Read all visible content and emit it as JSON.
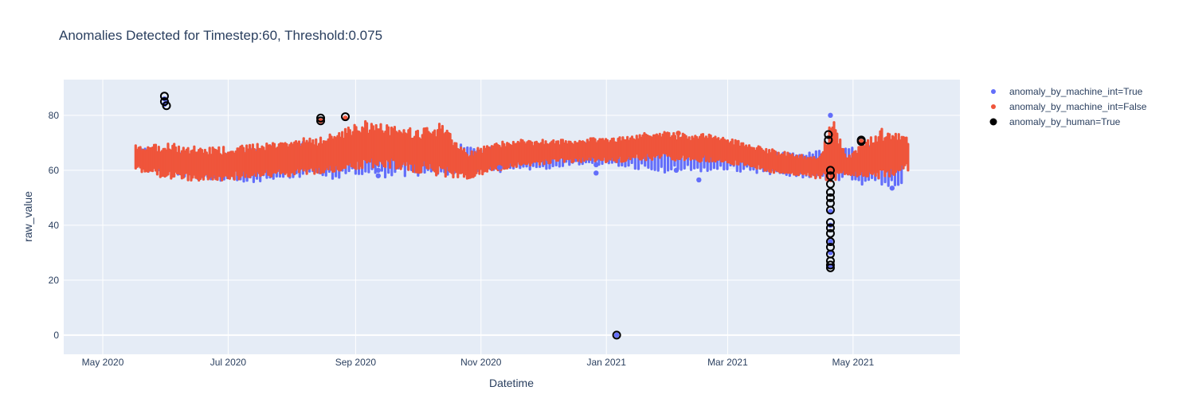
{
  "chart_data": {
    "type": "scatter",
    "title": "Anomalies Detected for Timestep:60, Threshold:0.075",
    "xlabel": "Datetime",
    "ylabel": "raw_value",
    "xlim": [
      "2020-04-12",
      "2021-06-22"
    ],
    "ylim": [
      -7,
      93
    ],
    "x_ticks": [
      {
        "date": "2020-05-01",
        "label": "May 2020"
      },
      {
        "date": "2020-07-01",
        "label": "Jul 2020"
      },
      {
        "date": "2020-09-01",
        "label": "Sep 2020"
      },
      {
        "date": "2020-11-01",
        "label": "Nov 2020"
      },
      {
        "date": "2021-01-01",
        "label": "Jan 2021"
      },
      {
        "date": "2021-03-01",
        "label": "Mar 2021"
      },
      {
        "date": "2021-05-01",
        "label": "May 2021"
      }
    ],
    "y_ticks": [
      0,
      20,
      40,
      60,
      80
    ],
    "grid": true,
    "legend_position": "top-right",
    "background_color": "#e5ecf6",
    "series": [
      {
        "name": "anomaly_by_machine_int=True",
        "color": "#636efa",
        "marker": "circle",
        "band": [
          {
            "x": "2020-05-20",
            "low": 60,
            "high": 68
          },
          {
            "x": "2020-06-10",
            "low": 57,
            "high": 66
          },
          {
            "x": "2020-07-01",
            "low": 55,
            "high": 67
          },
          {
            "x": "2020-08-01",
            "low": 57,
            "high": 70
          },
          {
            "x": "2020-09-01",
            "low": 57,
            "high": 72
          },
          {
            "x": "2020-10-01",
            "low": 58,
            "high": 72
          },
          {
            "x": "2020-11-01",
            "low": 59,
            "high": 68
          },
          {
            "x": "2021-01-01",
            "low": 62,
            "high": 70
          },
          {
            "x": "2021-02-01",
            "low": 59,
            "high": 70
          },
          {
            "x": "2021-03-01",
            "low": 60,
            "high": 68
          },
          {
            "x": "2021-04-01",
            "low": 58,
            "high": 66
          },
          {
            "x": "2021-05-26",
            "low": 53,
            "high": 70
          }
        ],
        "points": [
          {
            "x": "2020-05-31",
            "y": 86
          },
          {
            "x": "2020-05-31",
            "y": 84
          },
          {
            "x": "2020-06-01",
            "y": 85
          },
          {
            "x": "2020-09-12",
            "y": 60
          },
          {
            "x": "2020-09-12",
            "y": 58
          },
          {
            "x": "2020-11-10",
            "y": 61
          },
          {
            "x": "2020-12-27",
            "y": 62
          },
          {
            "x": "2020-12-27",
            "y": 59
          },
          {
            "x": "2021-02-04",
            "y": 60
          },
          {
            "x": "2021-02-15",
            "y": 56.5
          },
          {
            "x": "2021-04-20",
            "y": 80
          },
          {
            "x": "2021-04-20",
            "y": 45
          },
          {
            "x": "2021-04-20",
            "y": 40
          },
          {
            "x": "2021-04-20",
            "y": 34
          },
          {
            "x": "2021-04-20",
            "y": 30
          },
          {
            "x": "2021-04-20",
            "y": 25
          },
          {
            "x": "2021-05-20",
            "y": 53.5
          },
          {
            "x": "2021-01-06",
            "y": 0
          }
        ]
      },
      {
        "name": "anomaly_by_machine_int=False",
        "color": "#ef553b",
        "marker": "circle",
        "band": [
          {
            "x": "2020-05-17",
            "low": 60,
            "high": 69
          },
          {
            "x": "2020-06-01",
            "low": 57,
            "high": 70
          },
          {
            "x": "2020-06-20",
            "low": 56,
            "high": 68
          },
          {
            "x": "2020-07-10",
            "low": 57,
            "high": 69
          },
          {
            "x": "2020-08-01",
            "low": 58,
            "high": 71
          },
          {
            "x": "2020-08-20",
            "low": 59,
            "high": 73
          },
          {
            "x": "2020-09-05",
            "low": 61,
            "high": 78
          },
          {
            "x": "2020-09-25",
            "low": 60,
            "high": 75
          },
          {
            "x": "2020-10-12",
            "low": 58,
            "high": 77
          },
          {
            "x": "2020-10-25",
            "low": 57,
            "high": 67
          },
          {
            "x": "2020-11-15",
            "low": 61,
            "high": 71
          },
          {
            "x": "2020-12-10",
            "low": 63,
            "high": 71
          },
          {
            "x": "2021-01-05",
            "low": 63,
            "high": 72
          },
          {
            "x": "2021-01-25",
            "low": 64,
            "high": 74
          },
          {
            "x": "2021-02-20",
            "low": 63,
            "high": 73
          },
          {
            "x": "2021-03-10",
            "low": 61,
            "high": 70
          },
          {
            "x": "2021-04-01",
            "low": 58,
            "high": 66
          },
          {
            "x": "2021-04-15",
            "low": 57,
            "high": 65
          },
          {
            "x": "2021-04-21",
            "low": 56,
            "high": 79
          },
          {
            "x": "2021-04-28",
            "low": 58,
            "high": 65
          },
          {
            "x": "2021-05-15",
            "low": 57,
            "high": 75
          },
          {
            "x": "2021-05-28",
            "low": 60,
            "high": 72
          }
        ],
        "points": [
          {
            "x": "2020-08-15",
            "y": 78
          },
          {
            "x": "2020-08-27",
            "y": 79
          },
          {
            "x": "2021-02-05",
            "y": 73.5
          },
          {
            "x": "2021-05-05",
            "y": 70.5
          }
        ]
      },
      {
        "name": "anomaly_by_human=True",
        "color": "#000000",
        "marker": "circle-outline",
        "points": [
          {
            "x": "2020-05-31",
            "y": 87
          },
          {
            "x": "2020-05-31",
            "y": 85
          },
          {
            "x": "2020-06-01",
            "y": 83.5
          },
          {
            "x": "2020-08-15",
            "y": 79
          },
          {
            "x": "2020-08-15",
            "y": 78
          },
          {
            "x": "2020-08-27",
            "y": 79.5
          },
          {
            "x": "2021-01-06",
            "y": 0
          },
          {
            "x": "2021-04-19",
            "y": 73
          },
          {
            "x": "2021-04-19",
            "y": 71
          },
          {
            "x": "2021-04-20",
            "y": 60
          },
          {
            "x": "2021-04-20",
            "y": 58
          },
          {
            "x": "2021-04-20",
            "y": 55
          },
          {
            "x": "2021-04-20",
            "y": 52
          },
          {
            "x": "2021-04-20",
            "y": 50
          },
          {
            "x": "2021-04-20",
            "y": 48
          },
          {
            "x": "2021-04-20",
            "y": 45.5
          },
          {
            "x": "2021-04-20",
            "y": 41
          },
          {
            "x": "2021-04-20",
            "y": 39
          },
          {
            "x": "2021-04-20",
            "y": 37
          },
          {
            "x": "2021-04-20",
            "y": 34
          },
          {
            "x": "2021-04-20",
            "y": 32
          },
          {
            "x": "2021-04-20",
            "y": 29.5
          },
          {
            "x": "2021-04-20",
            "y": 27
          },
          {
            "x": "2021-04-20",
            "y": 25.5
          },
          {
            "x": "2021-04-20",
            "y": 24.5
          },
          {
            "x": "2021-05-05",
            "y": 71
          },
          {
            "x": "2021-05-05",
            "y": 70.5
          }
        ]
      }
    ]
  }
}
